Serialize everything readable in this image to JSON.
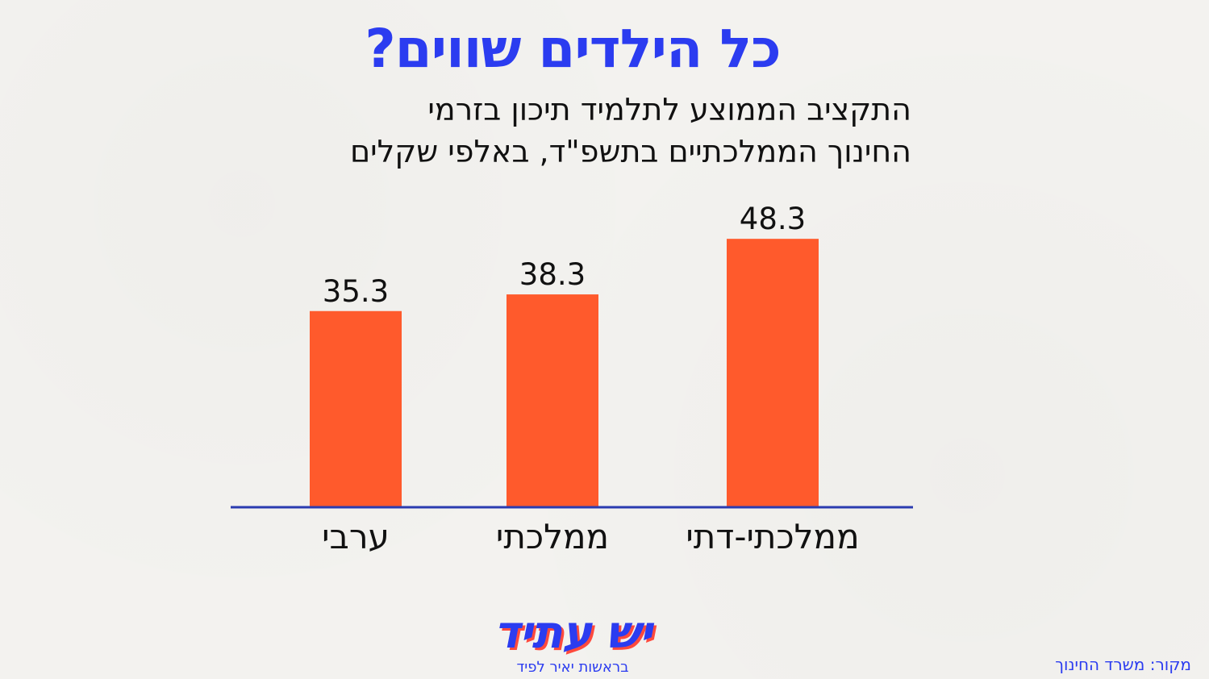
{
  "header": {
    "title": "כל הילדים שווים?",
    "subtitle_line1": "התקציב הממוצע לתלמיד תיכון בזרמי",
    "subtitle_line2": "החינוך הממלכתיים בתשפ\"ד, באלפי שקלים"
  },
  "chart_data": {
    "type": "bar",
    "title": "",
    "categories": [
      "ממלכתי-דתי",
      "ממלכתי",
      "ערבי"
    ],
    "values": [
      48.3,
      38.3,
      35.3
    ],
    "value_labels": [
      "48.3",
      "38.3",
      "35.3"
    ],
    "xlabel": "",
    "ylabel": "",
    "ylim": [
      0,
      55
    ],
    "grid": false,
    "bar_color": "#ff5a2c",
    "axis_color": "#2b3cb0"
  },
  "footer": {
    "logo_main": "יש עתיד",
    "logo_sub": "בראשות יאיר לפיד",
    "source": "מקור: משרד החינוך"
  },
  "colors": {
    "title": "#2b3cf0",
    "accent_red": "#ff4a3d"
  }
}
